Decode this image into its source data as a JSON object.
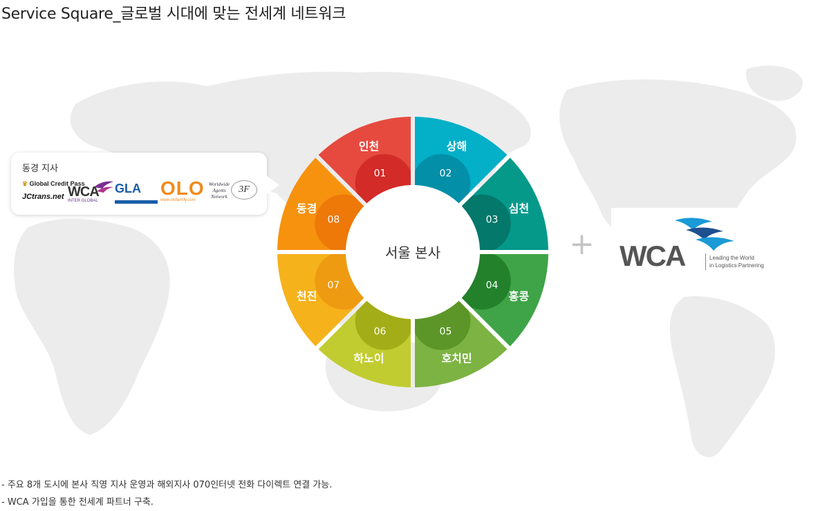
{
  "page": {
    "title": "Service Square_글로벌 시대에 맞는 전세계 네트워크"
  },
  "callout": {
    "title": "동경 지사",
    "logos": {
      "gcp": "Global Credit Pass",
      "jctrans": "JCtrans.net",
      "wca_small": "WCA",
      "wca_small_sub": "INTER GLOBAL",
      "gla": "GLA",
      "olo": "OLO",
      "olo_url": "www.olofamily.com",
      "wan_line1": "Worldwide",
      "wan_line2": "Agents",
      "wan_line3": "Network",
      "f3": "3F"
    }
  },
  "center_label": "서울 본사",
  "segments": [
    {
      "city": "인천",
      "num": "01",
      "color": "#e64a3e",
      "inner": "#d22b28"
    },
    {
      "city": "상해",
      "num": "02",
      "color": "#04afc8",
      "inner": "#038fa8"
    },
    {
      "city": "심천",
      "num": "03",
      "color": "#05998a",
      "inner": "#03786b"
    },
    {
      "city": "홍콩",
      "num": "04",
      "color": "#3ea447",
      "inner": "#23812c"
    },
    {
      "city": "호치민",
      "num": "05",
      "color": "#7cb342",
      "inner": "#5c9628"
    },
    {
      "city": "하노이",
      "num": "06",
      "color": "#c1cc30",
      "inner": "#a3ad18"
    },
    {
      "city": "천진",
      "num": "07",
      "color": "#f6b21b",
      "inner": "#ee9b12"
    },
    {
      "city": "동경",
      "num": "08",
      "color": "#f6920e",
      "inner": "#ee7808"
    }
  ],
  "plus": "+",
  "wca": {
    "name": "WCA",
    "tagline_line1": "Leading the World",
    "tagline_line2": "in Logistics Partnering",
    "colors": {
      "text": "#555555",
      "bird1": "#1a9ad6",
      "bird2": "#1e4f8f"
    }
  },
  "notes": [
    "- 주요 8개 도시에 본사 직영 지사 운영과 해외지사 070인터넷 전화 다이렉트 연결 가능.",
    "- WCA 가입을 통한 전세계 파트너 구축."
  ]
}
